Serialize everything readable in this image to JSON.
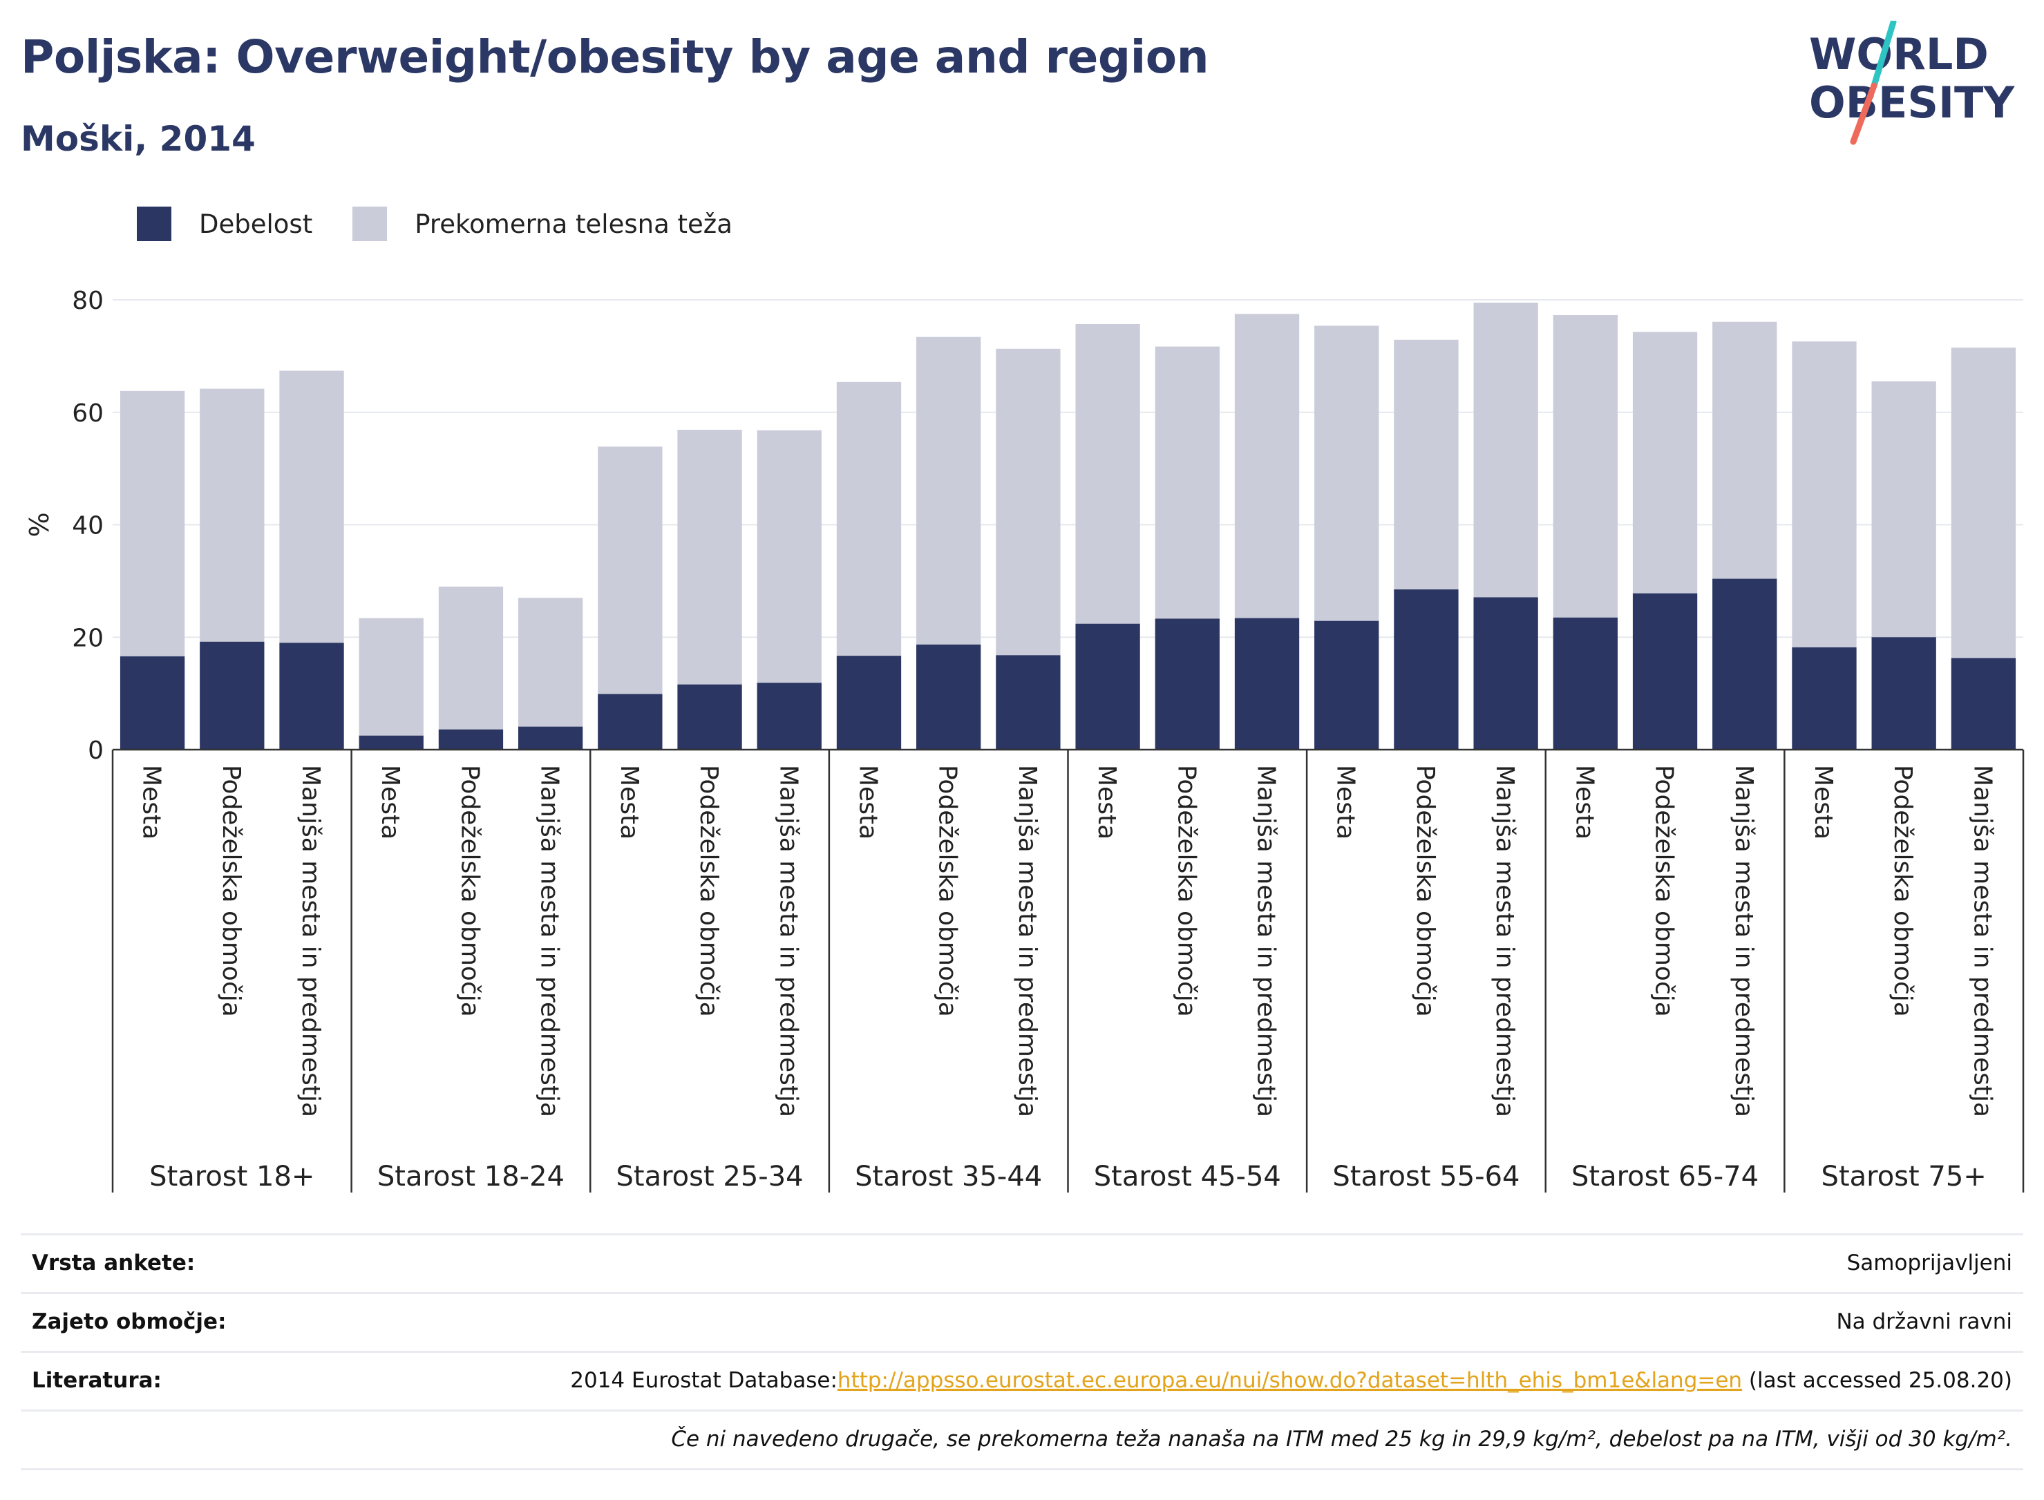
{
  "header": {
    "title": "Poljska: Overweight/obesity by age and region",
    "subtitle": "Moški, 2014"
  },
  "logo": {
    "line1": "WORLD",
    "line2": "OBESITY",
    "slash_colors": [
      "#2ec4c4",
      "#ee6a5a"
    ]
  },
  "legend": {
    "obesity_label": "Debelost",
    "overweight_label": "Prekomerna telesna teža"
  },
  "colors": {
    "obesity": "#2b3663",
    "overweight": "#cacdd9",
    "title": "#2b3865"
  },
  "chart_data": {
    "type": "bar",
    "stacked": true,
    "ylabel": "%",
    "ylim": [
      0,
      80
    ],
    "yticks": [
      0,
      20,
      40,
      60,
      80
    ],
    "grid": true,
    "legend_position": "top-left",
    "subcategories": [
      "Mesta",
      "Podeželska območja",
      "Manjša mesta in predmestja"
    ],
    "groups": [
      {
        "label": "Starost 18+",
        "obesity": [
          16.6,
          19.2,
          19.0
        ],
        "total": [
          63.8,
          64.2,
          67.4
        ]
      },
      {
        "label": "Starost 18-24",
        "obesity": [
          2.5,
          3.6,
          4.1
        ],
        "total": [
          23.4,
          29.0,
          27.0
        ]
      },
      {
        "label": "Starost 25-34",
        "obesity": [
          9.9,
          11.6,
          11.9
        ],
        "total": [
          53.9,
          56.9,
          56.8
        ]
      },
      {
        "label": "Starost 35-44",
        "obesity": [
          16.7,
          18.7,
          16.8
        ],
        "total": [
          65.4,
          73.4,
          71.3
        ]
      },
      {
        "label": "Starost 45-54",
        "obesity": [
          22.4,
          23.3,
          23.4
        ],
        "total": [
          75.7,
          71.7,
          77.5
        ]
      },
      {
        "label": "Starost 55-64",
        "obesity": [
          22.9,
          28.5,
          27.1
        ],
        "total": [
          75.4,
          72.9,
          79.5
        ]
      },
      {
        "label": "Starost 65-74",
        "obesity": [
          23.5,
          27.8,
          30.4
        ],
        "total": [
          77.3,
          74.3,
          76.1
        ]
      },
      {
        "label": "Starost 75+",
        "obesity": [
          18.2,
          20.0,
          16.3
        ],
        "total": [
          72.6,
          65.5,
          71.5
        ]
      }
    ]
  },
  "footer": {
    "survey_type_label": "Vrsta ankete:",
    "survey_type_value": "Samoprijavljeni",
    "coverage_label": "Zajeto območje:",
    "coverage_value": "Na državni ravni",
    "reference_label": "Literatura:",
    "reference_prefix": "2014 Eurostat Database:",
    "reference_link": "http://appsso.eurostat.ec.europa.eu/nui/show.do?dataset=hlth_ehis_bm1e&lang=en",
    "reference_suffix": " (last accessed 25.08.20)",
    "note": "Če ni navedeno drugače, se prekomerna teža nanaša na ITM med 25 kg in 29,9 kg/m², debelost pa na ITM, višji od 30 kg/m²."
  }
}
